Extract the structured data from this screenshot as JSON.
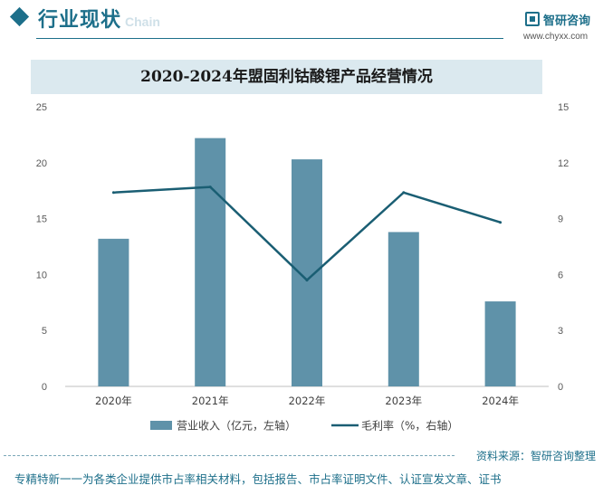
{
  "header": {
    "section_title": "行业现状",
    "section_subtitle": "Chain",
    "logo_name": "智研咨询",
    "logo_url": "www.chyxx.com"
  },
  "chart_data": {
    "type": "bar",
    "title": "2020-2024年盟固利钴酸锂产品经营情况",
    "categories": [
      "2020年",
      "2021年",
      "2022年",
      "2023年",
      "2024年"
    ],
    "series": [
      {
        "name": "营业收入（亿元，左轴）",
        "type": "bar",
        "axis": "left",
        "color": "#5f92a9",
        "values": [
          13.2,
          22.2,
          20.3,
          13.8,
          7.6
        ]
      },
      {
        "name": "毛利率（%，右轴）",
        "type": "line",
        "axis": "right",
        "color": "#1a5e73",
        "values": [
          10.4,
          10.7,
          5.7,
          10.4,
          8.8
        ]
      }
    ],
    "y_left": {
      "range": [
        0,
        25
      ],
      "ticks": [
        "0",
        "5",
        "10",
        "15",
        "20",
        "25"
      ]
    },
    "y_right": {
      "range": [
        0,
        15
      ],
      "ticks": [
        "0",
        "3",
        "6",
        "9",
        "12",
        "15"
      ]
    },
    "grid": false,
    "legend_position": "bottom"
  },
  "source": "资料来源：智研咨询整理",
  "footer": "专精特新一一为各类企业提供市占率相关材料，包括报告、市占率证明文件、认证宣发文章、证书"
}
